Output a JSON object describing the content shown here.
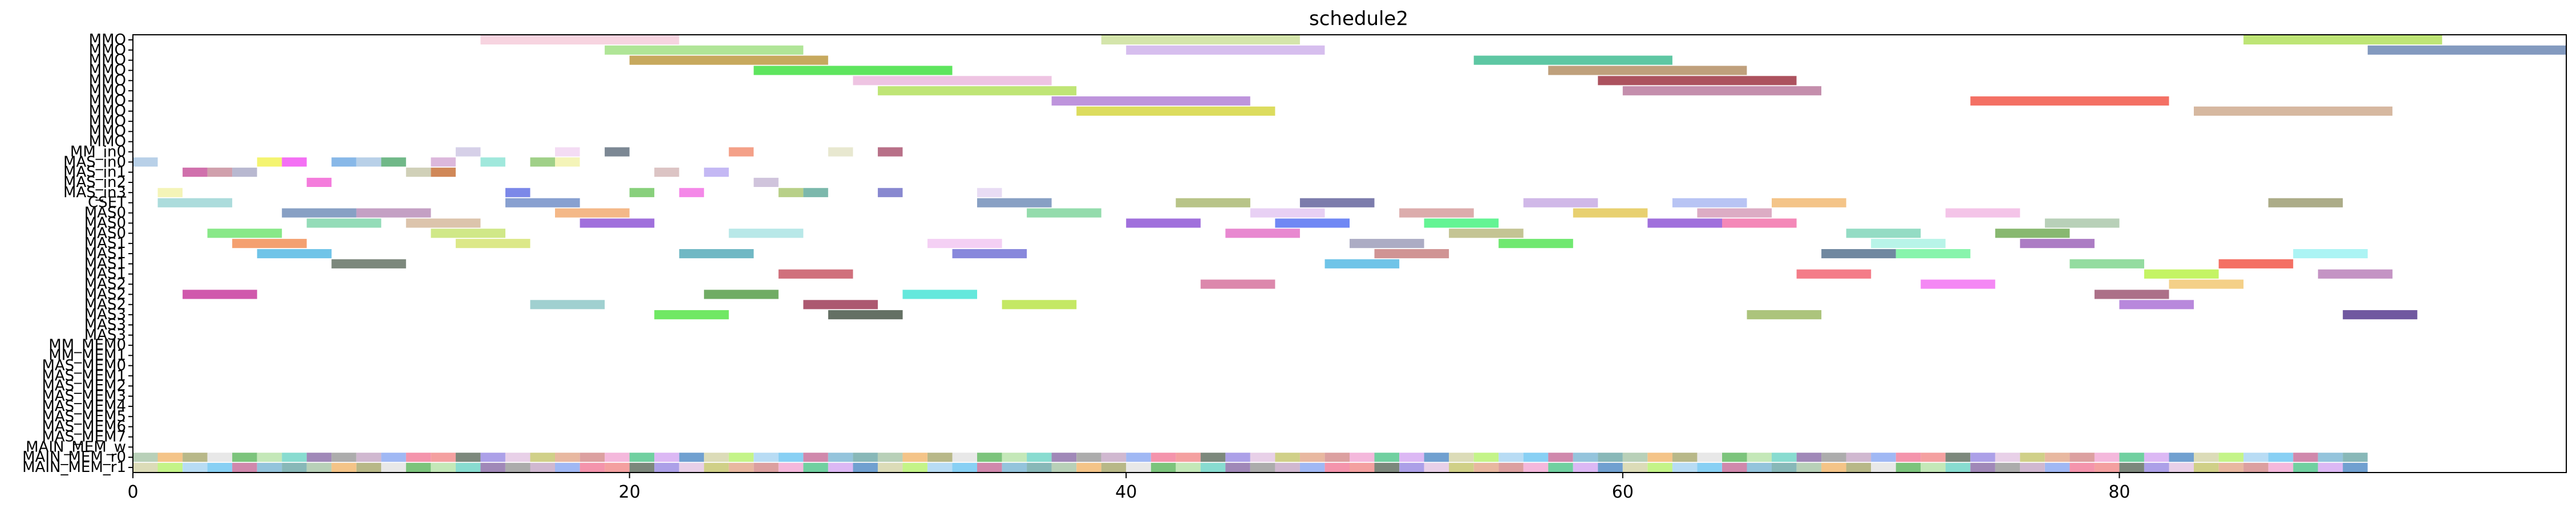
{
  "chart_data": {
    "type": "gantt",
    "title": "schedule2",
    "xlabel": "",
    "ylabel": "",
    "xlim": [
      0,
      98
    ],
    "x_ticks": [
      0,
      20,
      40,
      60,
      80
    ],
    "grid": false,
    "legend": "none",
    "rows": [
      "MMO",
      "MMO",
      "MMO",
      "MMO",
      "MMO",
      "MMO",
      "MMO",
      "MMO",
      "MMO",
      "MMO",
      "MMO",
      "MM_in0",
      "MAS_in0",
      "MAS_in1",
      "MAS_in2",
      "MAS_in3",
      "CSET",
      "MAS0",
      "MAS0",
      "MAS0",
      "MAS1",
      "MAS1",
      "MAS1",
      "MAS1",
      "MAS2",
      "MAS2",
      "MAS2",
      "MAS3",
      "MAS3",
      "MAS3",
      "MM_MEM0",
      "MM_MEM1",
      "MAS_MEM0",
      "MAS_MEM1",
      "MAS_MEM2",
      "MAS_MEM3",
      "MAS_MEM4",
      "MAS_MEM5",
      "MAS_MEM6",
      "MAS_MEM7",
      "MAIN_MEM_w",
      "MAIN_MEM_r0",
      "MAIN_MEM_r1"
    ],
    "tasks": [
      {
        "row": 0,
        "start": 14,
        "end": 22,
        "color": "#f4c6d6"
      },
      {
        "row": 0,
        "start": 39,
        "end": 47,
        "color": "#c6dc8f"
      },
      {
        "row": 0,
        "start": 85,
        "end": 93,
        "color": "#a8dc48"
      },
      {
        "row": 1,
        "start": 19,
        "end": 27,
        "color": "#96dc74"
      },
      {
        "row": 1,
        "start": 40,
        "end": 48,
        "color": "#c8a8e8"
      },
      {
        "row": 1,
        "start": 90,
        "end": 98,
        "color": "#5a78aa"
      },
      {
        "row": 2,
        "start": 20,
        "end": 28,
        "color": "#b48c28"
      },
      {
        "row": 2,
        "start": 54,
        "end": 62,
        "color": "#28b484"
      },
      {
        "row": 3,
        "start": 25,
        "end": 33,
        "color": "#28dc28"
      },
      {
        "row": 3,
        "start": 57,
        "end": 65,
        "color": "#aa8050"
      },
      {
        "row": 4,
        "start": 29,
        "end": 37,
        "color": "#e8b0d8"
      },
      {
        "row": 4,
        "start": 59,
        "end": 67,
        "color": "#901828"
      },
      {
        "row": 5,
        "start": 30,
        "end": 38,
        "color": "#aadc48"
      },
      {
        "row": 5,
        "start": 60,
        "end": 68,
        "color": "#b06890"
      },
      {
        "row": 6,
        "start": 37,
        "end": 45,
        "color": "#a870d0"
      },
      {
        "row": 6,
        "start": 74,
        "end": 82,
        "color": "#f04030"
      },
      {
        "row": 7,
        "start": 38,
        "end": 46,
        "color": "#d0d028"
      },
      {
        "row": 7,
        "start": 83,
        "end": 91,
        "color": "#c8a080"
      },
      {
        "row": 11,
        "start": 13,
        "end": 14,
        "color": "#c8c0e0"
      },
      {
        "row": 11,
        "start": 17,
        "end": 18,
        "color": "#f0d0f0"
      },
      {
        "row": 11,
        "start": 19,
        "end": 20,
        "color": "#506070"
      },
      {
        "row": 11,
        "start": 24,
        "end": 25,
        "color": "#f08060"
      },
      {
        "row": 11,
        "start": 28,
        "end": 29,
        "color": "#e0e0c0"
      },
      {
        "row": 11,
        "start": 30,
        "end": 31,
        "color": "#a04060"
      },
      {
        "row": 12,
        "start": 0,
        "end": 1,
        "color": "#a0c0e0"
      },
      {
        "row": 12,
        "start": 5,
        "end": 6,
        "color": "#f0f040"
      },
      {
        "row": 12,
        "start": 6,
        "end": 7,
        "color": "#f040f0"
      },
      {
        "row": 12,
        "start": 8,
        "end": 9,
        "color": "#60a0e0"
      },
      {
        "row": 12,
        "start": 9,
        "end": 10,
        "color": "#a0c0e0"
      },
      {
        "row": 12,
        "start": 10,
        "end": 11,
        "color": "#40a060"
      },
      {
        "row": 12,
        "start": 12,
        "end": 13,
        "color": "#d0a0d0"
      },
      {
        "row": 12,
        "start": 14,
        "end": 15,
        "color": "#80e0d0"
      },
      {
        "row": 12,
        "start": 16,
        "end": 17,
        "color": "#80c060"
      },
      {
        "row": 12,
        "start": 17,
        "end": 18,
        "color": "#f0f0a0"
      },
      {
        "row": 13,
        "start": 2,
        "end": 3,
        "color": "#c04090"
      },
      {
        "row": 13,
        "start": 3,
        "end": 4,
        "color": "#c08090"
      },
      {
        "row": 13,
        "start": 4,
        "end": 5,
        "color": "#a0a0c0"
      },
      {
        "row": 13,
        "start": 11,
        "end": 12,
        "color": "#c0c0a0"
      },
      {
        "row": 13,
        "start": 12,
        "end": 13,
        "color": "#c06020"
      },
      {
        "row": 13,
        "start": 21,
        "end": 22,
        "color": "#d0b0b0"
      },
      {
        "row": 13,
        "start": 23,
        "end": 24,
        "color": "#b0a0f0"
      },
      {
        "row": 14,
        "start": 7,
        "end": 8,
        "color": "#f050d0"
      },
      {
        "row": 14,
        "start": 25,
        "end": 26,
        "color": "#c0b0d0"
      },
      {
        "row": 15,
        "start": 1,
        "end": 2,
        "color": "#f0f0a0"
      },
      {
        "row": 15,
        "start": 15,
        "end": 16,
        "color": "#5060e0"
      },
      {
        "row": 15,
        "start": 20,
        "end": 21,
        "color": "#60c050"
      },
      {
        "row": 15,
        "start": 22,
        "end": 23,
        "color": "#f060e0"
      },
      {
        "row": 15,
        "start": 26,
        "end": 27,
        "color": "#a0c060"
      },
      {
        "row": 15,
        "start": 27,
        "end": 28,
        "color": "#50a090"
      },
      {
        "row": 15,
        "start": 30,
        "end": 31,
        "color": "#6060c0"
      },
      {
        "row": 15,
        "start": 34,
        "end": 35,
        "color": "#e0d0f0"
      },
      {
        "row": 16,
        "start": 1,
        "end": 4,
        "color": "#90d0d0"
      },
      {
        "row": 16,
        "start": 15,
        "end": 18,
        "color": "#6080c0"
      },
      {
        "row": 16,
        "start": 34,
        "end": 37,
        "color": "#6080b0"
      },
      {
        "row": 16,
        "start": 42,
        "end": 45,
        "color": "#a0b060"
      },
      {
        "row": 16,
        "start": 47,
        "end": 50,
        "color": "#505090"
      },
      {
        "row": 16,
        "start": 56,
        "end": 59,
        "color": "#c0a0e0"
      },
      {
        "row": 16,
        "start": 62,
        "end": 65,
        "color": "#a0b0f0"
      },
      {
        "row": 16,
        "start": 66,
        "end": 69,
        "color": "#f0b060"
      },
      {
        "row": 16,
        "start": 86,
        "end": 89,
        "color": "#909060"
      },
      {
        "row": 17,
        "start": 6,
        "end": 9,
        "color": "#6080b0"
      },
      {
        "row": 17,
        "start": 9,
        "end": 12,
        "color": "#b080b0"
      },
      {
        "row": 17,
        "start": 17,
        "end": 20,
        "color": "#f0a060"
      },
      {
        "row": 17,
        "start": 36,
        "end": 39,
        "color": "#70d090"
      },
      {
        "row": 17,
        "start": 45,
        "end": 48,
        "color": "#e0c0f0"
      },
      {
        "row": 17,
        "start": 51,
        "end": 54,
        "color": "#d09090"
      },
      {
        "row": 17,
        "start": 58,
        "end": 61,
        "color": "#e0c040"
      },
      {
        "row": 17,
        "start": 63,
        "end": 66,
        "color": "#d090b0"
      },
      {
        "row": 17,
        "start": 73,
        "end": 76,
        "color": "#f0b0e0"
      },
      {
        "row": 18,
        "start": 7,
        "end": 10,
        "color": "#70d0a0"
      },
      {
        "row": 18,
        "start": 11,
        "end": 14,
        "color": "#d0b090"
      },
      {
        "row": 18,
        "start": 18,
        "end": 21,
        "color": "#8040d0"
      },
      {
        "row": 18,
        "start": 40,
        "end": 43,
        "color": "#8040d0"
      },
      {
        "row": 18,
        "start": 46,
        "end": 49,
        "color": "#4060f0"
      },
      {
        "row": 18,
        "start": 52,
        "end": 55,
        "color": "#30f070"
      },
      {
        "row": 18,
        "start": 61,
        "end": 64,
        "color": "#8040d0"
      },
      {
        "row": 18,
        "start": 64,
        "end": 67,
        "color": "#f060a0"
      },
      {
        "row": 18,
        "start": 77,
        "end": 80,
        "color": "#a0c0a0"
      },
      {
        "row": 19,
        "start": 3,
        "end": 6,
        "color": "#60e060"
      },
      {
        "row": 19,
        "start": 12,
        "end": 15,
        "color": "#c0e060"
      },
      {
        "row": 19,
        "start": 24,
        "end": 27,
        "color": "#a0e0e0"
      },
      {
        "row": 19,
        "start": 44,
        "end": 47,
        "color": "#e060c0"
      },
      {
        "row": 19,
        "start": 53,
        "end": 56,
        "color": "#b0b070"
      },
      {
        "row": 19,
        "start": 69,
        "end": 72,
        "color": "#70d0b0"
      },
      {
        "row": 19,
        "start": 75,
        "end": 78,
        "color": "#60a040"
      },
      {
        "row": 20,
        "start": 4,
        "end": 7,
        "color": "#f08040"
      },
      {
        "row": 20,
        "start": 13,
        "end": 16,
        "color": "#d0e060"
      },
      {
        "row": 20,
        "start": 32,
        "end": 35,
        "color": "#f0c0f0"
      },
      {
        "row": 20,
        "start": 49,
        "end": 52,
        "color": "#9090b0"
      },
      {
        "row": 20,
        "start": 55,
        "end": 58,
        "color": "#40e040"
      },
      {
        "row": 20,
        "start": 70,
        "end": 73,
        "color": "#a0f0e0"
      },
      {
        "row": 20,
        "start": 76,
        "end": 79,
        "color": "#9050b0"
      },
      {
        "row": 21,
        "start": 5,
        "end": 8,
        "color": "#40b0e0"
      },
      {
        "row": 21,
        "start": 22,
        "end": 25,
        "color": "#40a0b0"
      },
      {
        "row": 21,
        "start": 33,
        "end": 36,
        "color": "#6060d0"
      },
      {
        "row": 21,
        "start": 50,
        "end": 53,
        "color": "#c07070"
      },
      {
        "row": 21,
        "start": 68,
        "end": 71,
        "color": "#406080"
      },
      {
        "row": 21,
        "start": 71,
        "end": 74,
        "color": "#60f090"
      },
      {
        "row": 21,
        "start": 87,
        "end": 90,
        "color": "#90f0f0"
      },
      {
        "row": 22,
        "start": 8,
        "end": 11,
        "color": "#506050"
      },
      {
        "row": 22,
        "start": 48,
        "end": 51,
        "color": "#40b0e0"
      },
      {
        "row": 22,
        "start": 78,
        "end": 81,
        "color": "#70d080"
      },
      {
        "row": 22,
        "start": 84,
        "end": 87,
        "color": "#f04030"
      },
      {
        "row": 23,
        "start": 26,
        "end": 29,
        "color": "#c04050"
      },
      {
        "row": 23,
        "start": 67,
        "end": 70,
        "color": "#f05060"
      },
      {
        "row": 23,
        "start": 81,
        "end": 84,
        "color": "#b0f030"
      },
      {
        "row": 23,
        "start": 88,
        "end": 91,
        "color": "#b070b0"
      },
      {
        "row": 24,
        "start": 43,
        "end": 46,
        "color": "#d06090"
      },
      {
        "row": 24,
        "start": 72,
        "end": 75,
        "color": "#f060f0"
      },
      {
        "row": 24,
        "start": 82,
        "end": 85,
        "color": "#f0c060"
      },
      {
        "row": 25,
        "start": 2,
        "end": 5,
        "color": "#c02090"
      },
      {
        "row": 25,
        "start": 23,
        "end": 26,
        "color": "#409030"
      },
      {
        "row": 25,
        "start": 31,
        "end": 34,
        "color": "#30e0d0"
      },
      {
        "row": 25,
        "start": 79,
        "end": 82,
        "color": "#904060"
      },
      {
        "row": 26,
        "start": 16,
        "end": 19,
        "color": "#80c0c0"
      },
      {
        "row": 26,
        "start": 27,
        "end": 30,
        "color": "#902040"
      },
      {
        "row": 26,
        "start": 35,
        "end": 38,
        "color": "#b0e030"
      },
      {
        "row": 26,
        "start": 80,
        "end": 83,
        "color": "#a060d0"
      },
      {
        "row": 27,
        "start": 21,
        "end": 24,
        "color": "#40e030"
      },
      {
        "row": 27,
        "start": 28,
        "end": 31,
        "color": "#304030"
      },
      {
        "row": 27,
        "start": 65,
        "end": 68,
        "color": "#90b050"
      },
      {
        "row": 27,
        "start": 89,
        "end": 92,
        "color": "#402080"
      }
    ],
    "mem_rows": [
      41,
      42
    ],
    "mem_span": [
      0,
      90
    ],
    "mem_palette": [
      "#a0c0a0",
      "#506050",
      "#60c0f0",
      "#c0a0c0",
      "#4080c0",
      "#b0e0a0",
      "#d08080",
      "#f0b060",
      "#9080e0",
      "#c06090",
      "#80a0f0",
      "#d0d0a0",
      "#60d0c0",
      "#f0a0d0",
      "#a0a060",
      "#e0c0e0",
      "#70b0d0",
      "#f07090",
      "#b0f060",
      "#8060a0",
      "#40c080",
      "#e0e0e0",
      "#c0c060",
      "#60a0a0",
      "#f08080",
      "#a0d0f0",
      "#909090",
      "#d0a0f0",
      "#50b050",
      "#e0a080"
    ]
  }
}
